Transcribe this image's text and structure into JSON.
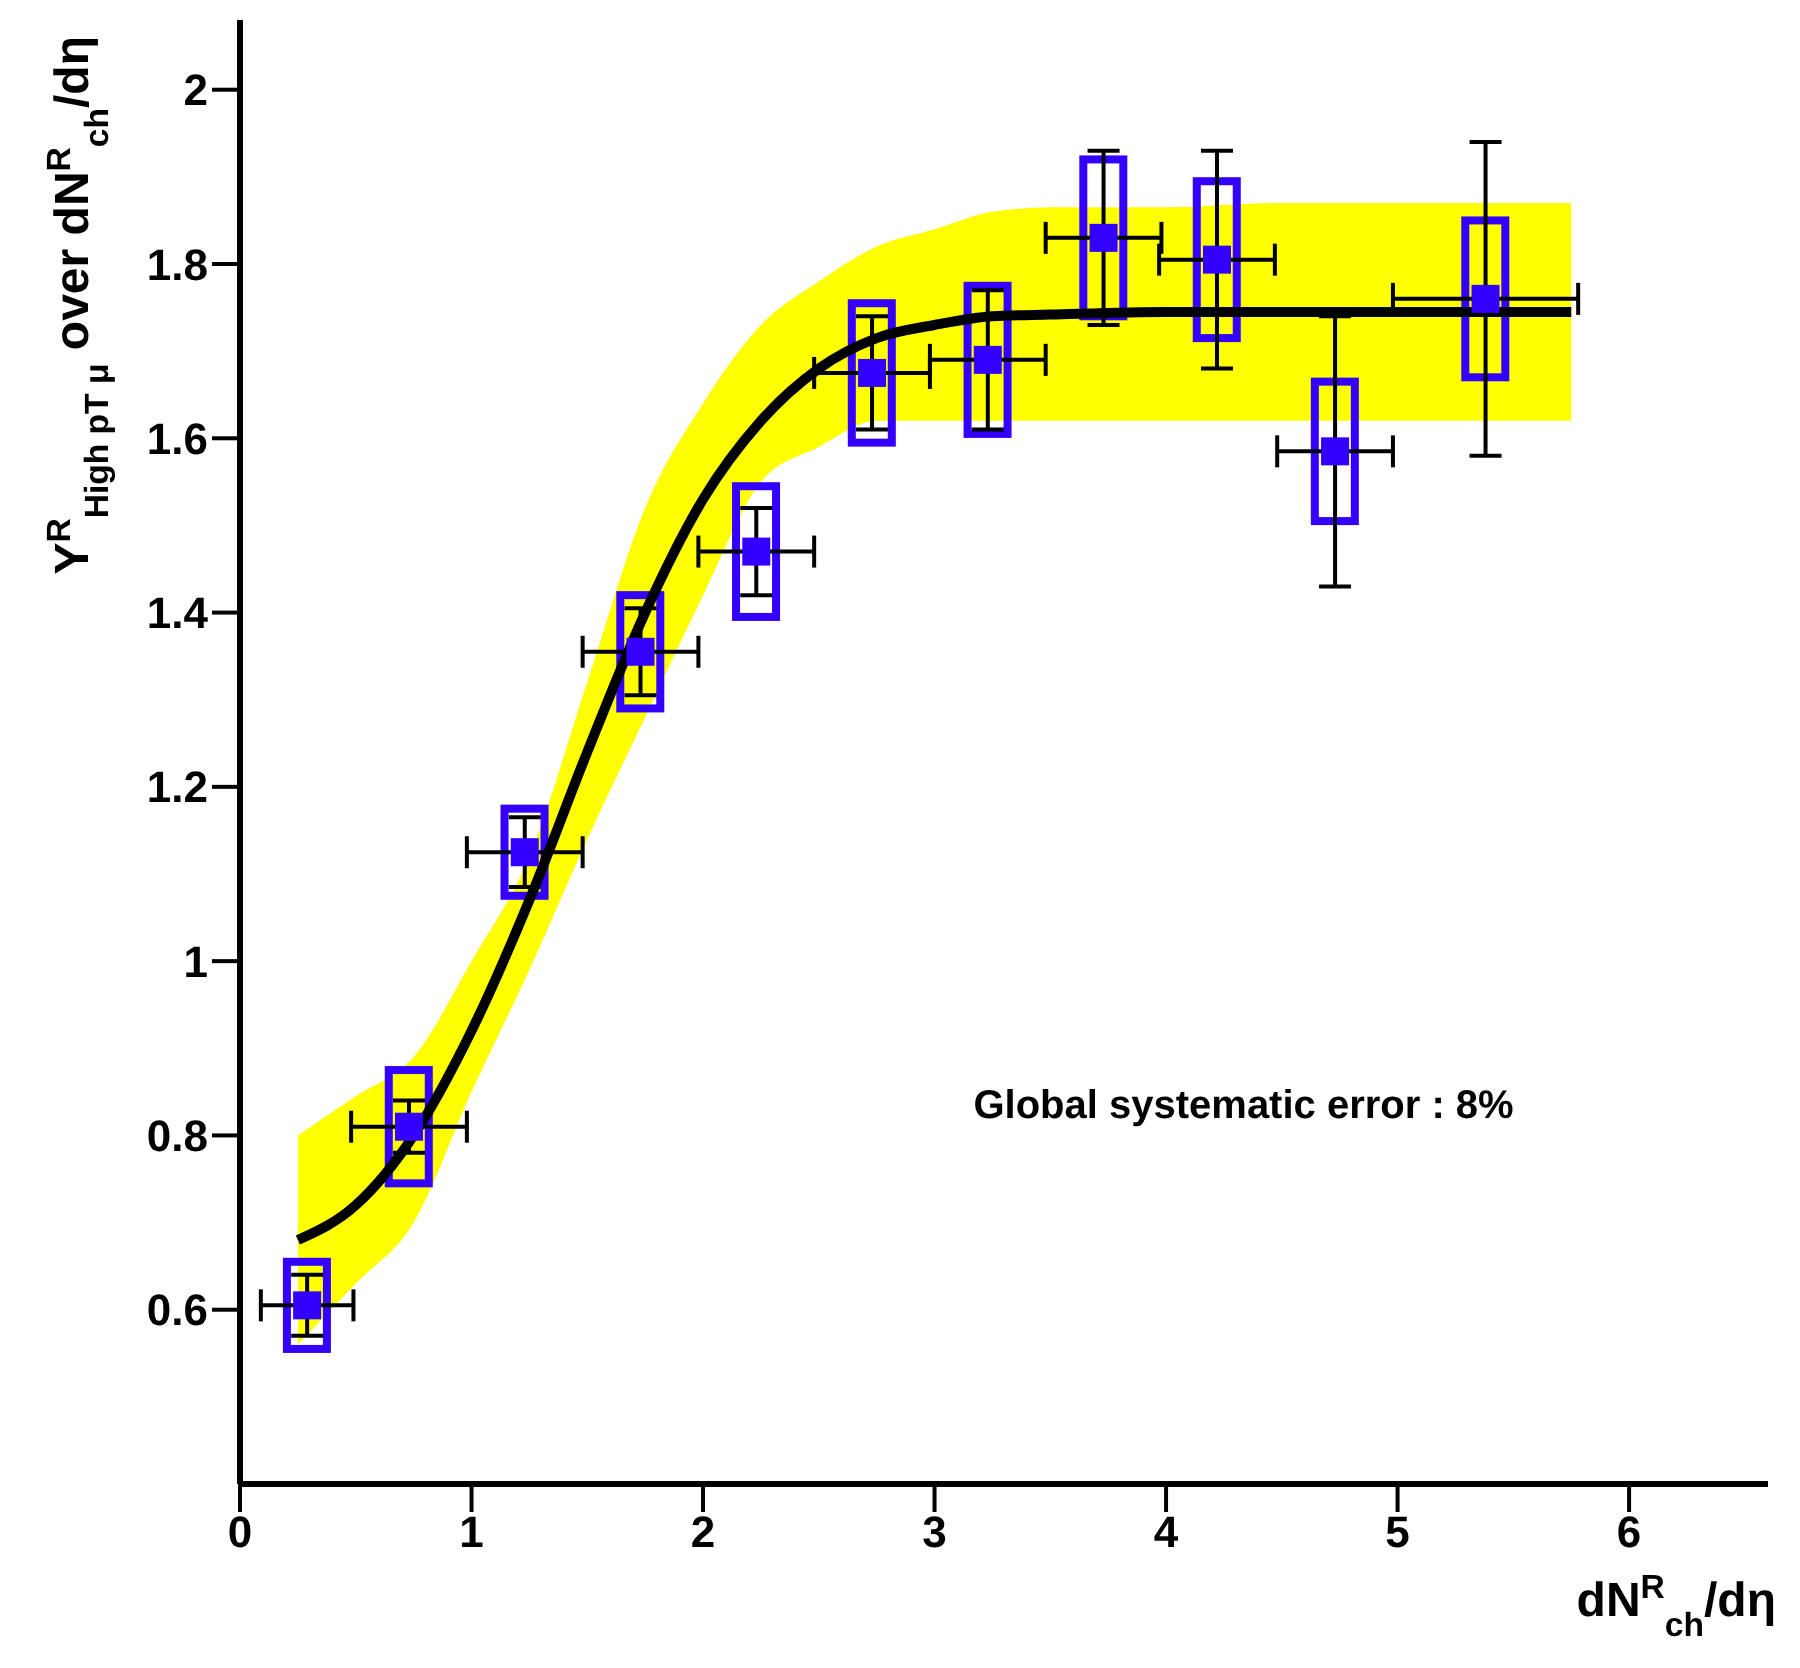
{
  "chart_data": {
    "type": "scatter",
    "xlabel": "dN$^{R}$$_{ch}$/dη",
    "ylabel": "Y$^{R}$$_{High pT μ}$ over dN$^{R}$$_{ch}$/dη",
    "annotations": [
      "Global systematic error : 8%"
    ],
    "xlim": [
      0,
      6.6
    ],
    "xticks": [
      0,
      1,
      2,
      3,
      4,
      5,
      6
    ],
    "ylim": [
      0.4,
      2.08
    ],
    "yticks": [
      0.6,
      0.8,
      1,
      1.2,
      1.4,
      1.6,
      1.8,
      2
    ],
    "series": [
      {
        "type": "line",
        "color": "#000000",
        "marker": "none",
        "line_style": "solid",
        "x": [
          0.25,
          0.5,
          0.75,
          1,
          1.25,
          1.5,
          1.75,
          2,
          2.25,
          2.5,
          2.75,
          3,
          3.25,
          3.5,
          4,
          4.5,
          5,
          5.5,
          5.75
        ],
        "values": [
          0.68,
          0.72,
          0.8,
          0.92,
          1.07,
          1.24,
          1.4,
          1.53,
          1.62,
          1.68,
          1.715,
          1.73,
          1.74,
          1.742,
          1.745,
          1.745,
          1.745,
          1.745,
          1.745
        ],
        "lower": [
          0.56,
          0.63,
          0.7,
          0.85,
          0.99,
          1.14,
          1.28,
          1.42,
          1.55,
          1.59,
          1.62,
          1.62,
          1.62,
          1.62,
          1.62,
          1.62,
          1.62,
          1.62,
          1.62
        ],
        "upper": [
          0.8,
          0.845,
          0.89,
          1.0,
          1.12,
          1.32,
          1.52,
          1.64,
          1.73,
          1.78,
          1.82,
          1.84,
          1.86,
          1.865,
          1.865,
          1.87,
          1.87,
          1.87,
          1.87
        ]
      },
      {
        "type": "bar",
        "color": "#3300ff",
        "x": [
          0.29,
          0.73,
          1.23,
          1.73,
          2.23,
          2.73,
          3.23,
          3.73,
          4.22,
          4.73,
          5.38
        ],
        "base": [
          0.555,
          0.745,
          1.075,
          1.29,
          1.395,
          1.595,
          1.605,
          1.74,
          1.715,
          1.505,
          1.67
        ],
        "values": [
          0.1,
          0.13,
          0.1,
          0.13,
          0.15,
          0.16,
          0.17,
          0.18,
          0.18,
          0.16,
          0.18
        ]
      },
      {
        "color": "#3300ff",
        "marker": "square",
        "x": [
          0.29,
          0.73,
          1.23,
          1.73,
          2.23,
          2.73,
          3.23,
          3.73,
          4.22,
          4.73,
          5.38
        ],
        "values": [
          0.605,
          0.81,
          1.125,
          1.355,
          1.47,
          1.675,
          1.69,
          1.83,
          1.805,
          1.585,
          1.76
        ],
        "errors": [
          0.035,
          0.03,
          0.04,
          0.05,
          0.05,
          0.065,
          0.08,
          0.1,
          0.125,
          0.155,
          0.18
        ],
        "xerrors": [
          0.2,
          0.25,
          0.25,
          0.25,
          0.25,
          0.25,
          0.25,
          0.25,
          0.25,
          0.25,
          0.4
        ]
      }
    ]
  }
}
